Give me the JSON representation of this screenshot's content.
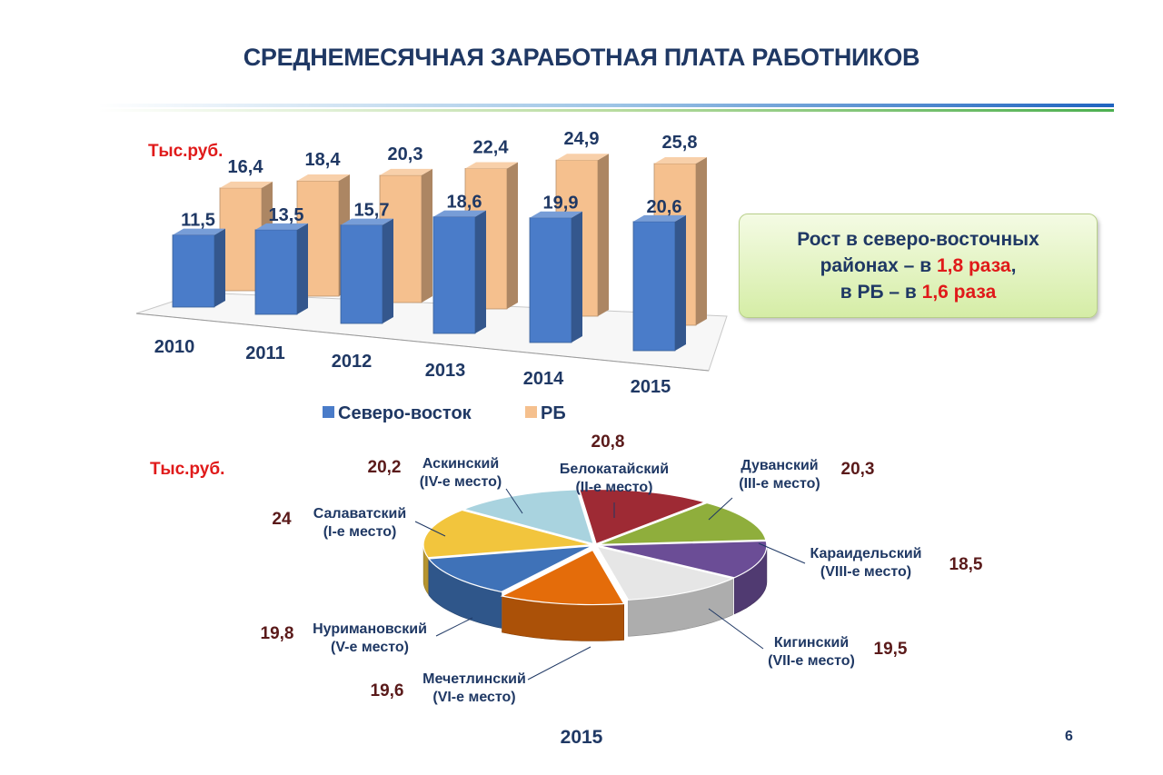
{
  "title": "СРЕДНЕМЕСЯЧНАЯ ЗАРАБОТНАЯ ПЛАТА РАБОТНИКОВ",
  "colors": {
    "title": "#1f3864",
    "accent_red": "#e01a1a",
    "value_brown": "#5a1a1a"
  },
  "callout": {
    "line1": "Рост в северо-восточных",
    "line2_prefix": "районах – в ",
    "line2_value": "1,8 раза",
    "line2_suffix": ",",
    "line3_prefix": "в РБ – в ",
    "line3_value": "1,6 раза"
  },
  "page_number": "6",
  "chart_data": [
    {
      "type": "bar",
      "unit_label": "Тыс.руб.",
      "categories": [
        "2010",
        "2011",
        "2012",
        "2013",
        "2014",
        "2015"
      ],
      "series": [
        {
          "name": "Северо-восток",
          "color": "#4a7cc9",
          "values": [
            11.5,
            13.5,
            15.7,
            18.6,
            19.9,
            20.6
          ],
          "labels": [
            "11,5",
            "13,5",
            "15,7",
            "18,6",
            "19,9",
            "20,6"
          ]
        },
        {
          "name": "РБ",
          "color": "#f5c08e",
          "values": [
            16.4,
            18.4,
            20.3,
            22.4,
            24.9,
            25.8
          ],
          "labels": [
            "16,4",
            "18,4",
            "20,3",
            "22,4",
            "24,9",
            "25,8"
          ]
        }
      ],
      "legend": "bottom",
      "grid": false
    },
    {
      "type": "pie",
      "unit_label": "Тыс.руб.",
      "xlabel": "2015",
      "slices": [
        {
          "name": "Белокатайский",
          "rank": "(II-е место)",
          "value": 20.8,
          "label": "20,8",
          "color": "#9e2a34"
        },
        {
          "name": "Дуванский",
          "rank": "(III-е место)",
          "value": 20.3,
          "label": "20,3",
          "color": "#8fae3c"
        },
        {
          "name": "Караидельский",
          "rank": "(VIII-е место)",
          "value": 18.5,
          "label": "18,5",
          "color": "#6b4d96"
        },
        {
          "name": "Кигинский",
          "rank": "(VII-е место)",
          "value": 19.5,
          "label": "19,5",
          "color": "#e6e6e6"
        },
        {
          "name": "Мечетлинский",
          "rank": "(VI-е место)",
          "value": 19.6,
          "label": "19,6",
          "color": "#e46c0a"
        },
        {
          "name": "Нуримановский",
          "rank": "(V-е место)",
          "value": 19.8,
          "label": "19,8",
          "color": "#3f72b8"
        },
        {
          "name": "Салаватский",
          "rank": "(I-е место)",
          "value": 24,
          "label": "24",
          "color": "#f2c53d"
        },
        {
          "name": "Аскинский",
          "rank": "(IV-е место)",
          "value": 20.2,
          "label": "20,2",
          "color": "#a9d3df"
        }
      ]
    }
  ]
}
